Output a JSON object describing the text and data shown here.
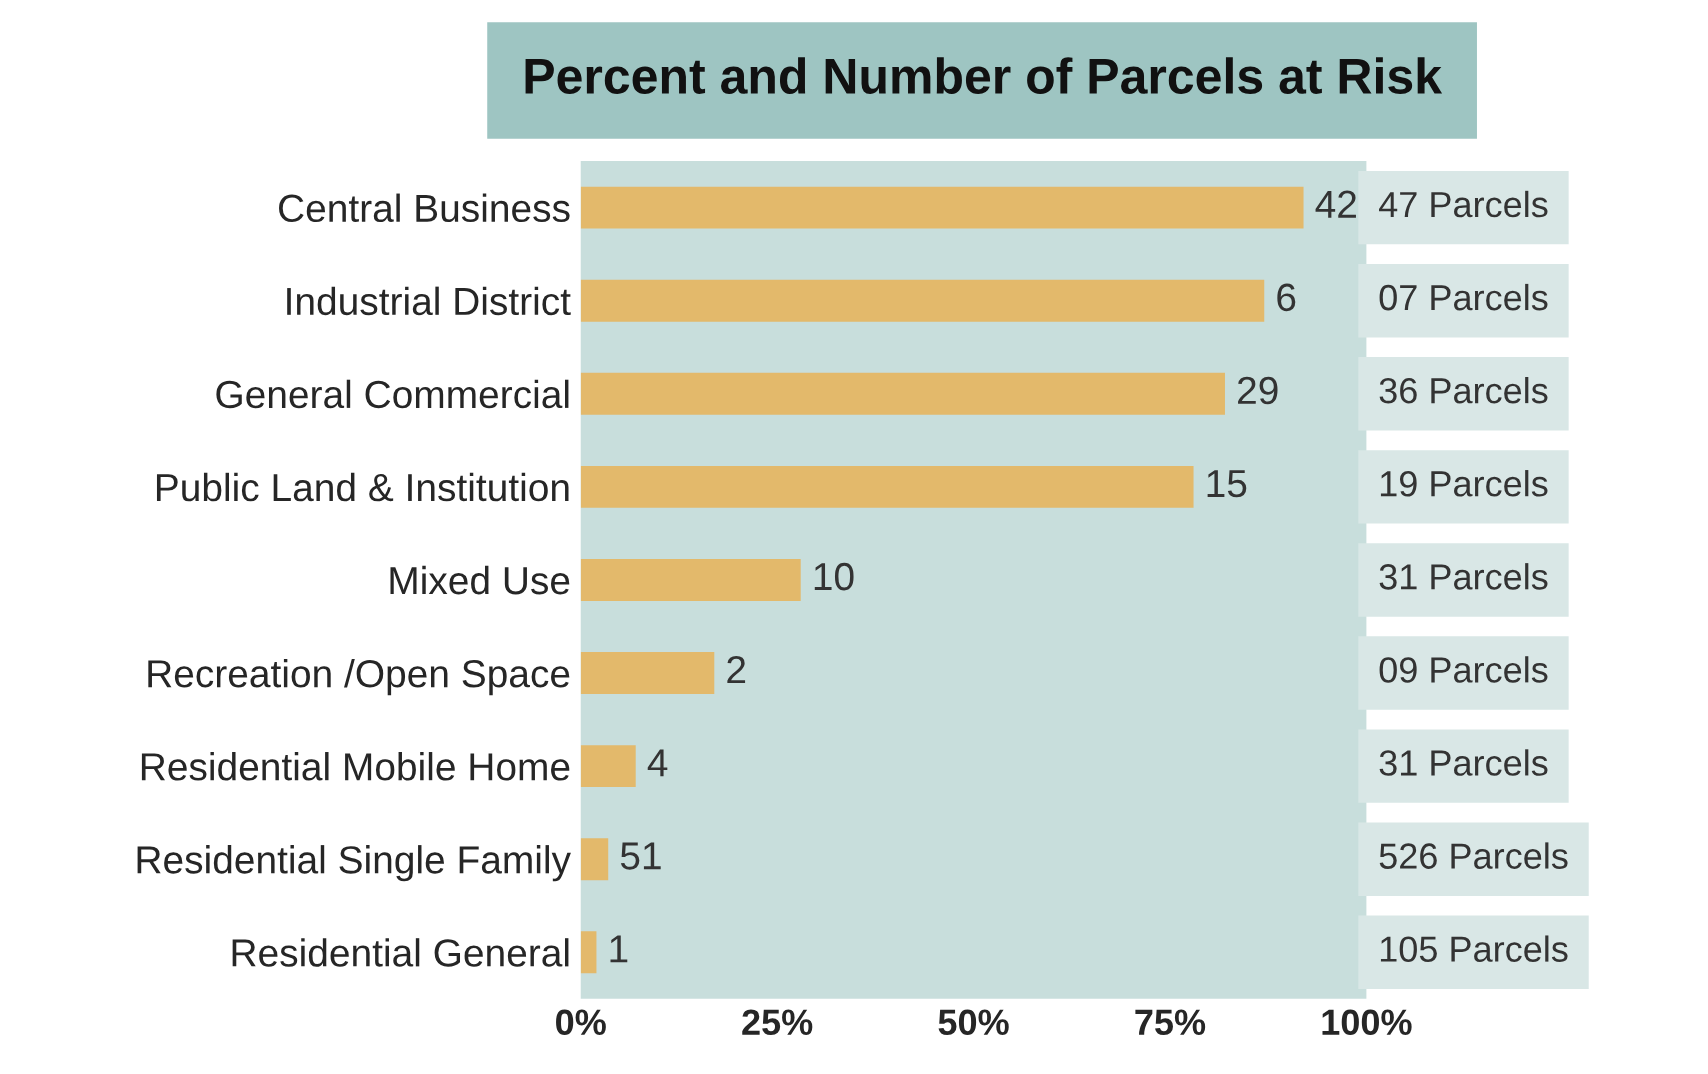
{
  "chart_data": {
    "type": "bar",
    "orientation": "horizontal",
    "title": "Percent and Number of Parcels at Risk",
    "categories": [
      "Central Business",
      "Industrial District",
      "General Commercial",
      "Public Land & Institution",
      "Mixed Use",
      "Recreation /Open Space",
      "Residential Mobile Home",
      "Residential Single Family",
      "Residential General"
    ],
    "values": [
      92,
      87,
      82,
      78,
      28,
      17,
      7,
      3.5,
      2
    ],
    "color": "#e3b96b",
    "xlim": [
      0,
      100
    ],
    "xticks": [
      {
        "value": 0,
        "label": "0%"
      },
      {
        "value": 25,
        "label": "25%"
      },
      {
        "value": 50,
        "label": "50%"
      },
      {
        "value": 75,
        "label": "75%"
      },
      {
        "value": 100,
        "label": "100%"
      }
    ],
    "annotations": [
      {
        "text": "42",
        "x": 92,
        "y": "Central Business"
      },
      {
        "text": "6",
        "x": 87,
        "y": "Industrial District"
      },
      {
        "text": "29",
        "x": 82,
        "y": "General Commercial"
      },
      {
        "text": "15",
        "x": 78,
        "y": "Public Land & Institution"
      },
      {
        "text": "10",
        "x": 28,
        "y": "Mixed Use"
      },
      {
        "text": "2",
        "x": 17,
        "y": "Recreation /Open Space"
      },
      {
        "text": "4",
        "x": 7,
        "y": "Residential Mobile Home"
      },
      {
        "text": "51",
        "x": 3.5,
        "y": "Residential Single Family"
      },
      {
        "text": "1",
        "x": 2,
        "y": "Residential General"
      },
      "47 Parcels",
      "07 Parcels",
      "36 Parcels",
      "19 Parcels",
      "31 Parcels",
      "09 Parcels",
      "31 Parcels",
      "526 Parcels",
      "105 Parcels"
    ],
    "grid": false
  }
}
